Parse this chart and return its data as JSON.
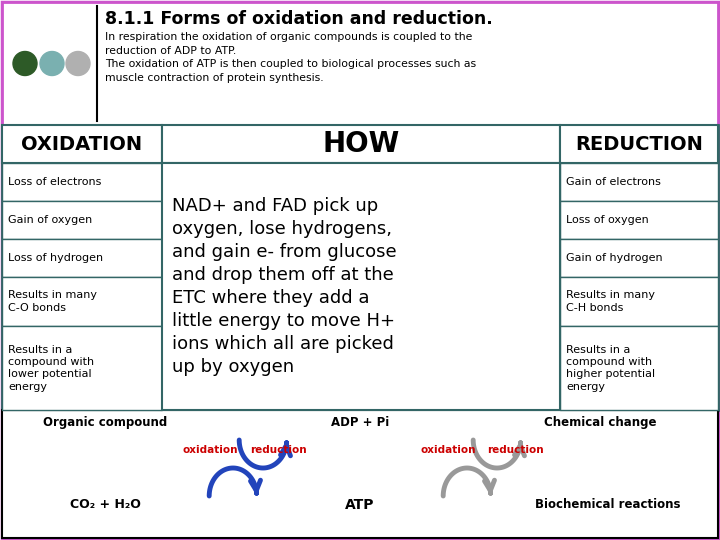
{
  "title": "8.1.1 Forms of oxidation and reduction.",
  "subtitle": "In respiration the oxidation of organic compounds is coupled to the\nreduction of ADP to ATP.\nThe oxidation of ATP is then coupled to biological processes such as\nmuscle contraction of protein synthesis.",
  "header_row": [
    "OXIDATION",
    "HOW",
    "REDUCTION"
  ],
  "oxidation_rows": [
    "Loss of electrons",
    "Gain of oxygen",
    "Loss of hydrogen",
    "Results in many\nC-O bonds",
    "Results in a\ncompound with\nlower potential\nenergy"
  ],
  "reduction_rows": [
    "Gain of electrons",
    "Loss of oxygen",
    "Gain of hydrogen",
    "Results in many\nC-H bonds",
    "Results in a\ncompound with\nhigher potential\nenergy"
  ],
  "how_text": "NAD+ and FAD pick up\noxygen, lose hydrogens,\nand gain e- from glucose\nand drop them off at the\nETC where they add a\nlittle energy to move H+\nions which all are picked\nup by oxygen",
  "bottom_top_labels": [
    "Organic compound",
    "ADP + Pi",
    "Chemical change"
  ],
  "bottom_bot_labels": [
    "CO₂ + H₂O",
    "ATP",
    "Biochemical reactions"
  ],
  "oxidation_label": "oxidation",
  "reduction_label": "reduction",
  "bg_color": "#ffffff",
  "header_outer_border": "#cc66cc",
  "table_border": "#336666",
  "title_color": "#000000",
  "dot_colors": [
    "#2d5a27",
    "#7ab0b0",
    "#b0b0b0"
  ],
  "ox_label_color": "#cc0000",
  "red_label_color": "#cc0000",
  "arrow_blue": "#2244bb",
  "arrow_gray": "#999999"
}
